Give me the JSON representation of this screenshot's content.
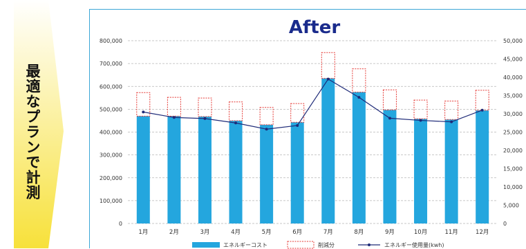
{
  "side_label": "最適なプランで計測",
  "colors": {
    "bar": "#24a6de",
    "reduction_outline": "#e53935",
    "line": "#1e2a78",
    "title": "#1a2b8c",
    "arrow_top": "#ffffff",
    "arrow_bottom": "#f7e13a"
  },
  "chart_data": {
    "type": "bar",
    "title": "After",
    "categories": [
      "1月",
      "2月",
      "3月",
      "4月",
      "5月",
      "6月",
      "7月",
      "8月",
      "9月",
      "10月",
      "11月",
      "12月"
    ],
    "y_left": {
      "min": 0,
      "max": 800000,
      "step": 100000,
      "tick_labels": [
        "0",
        "100,000",
        "200,000",
        "300,000",
        "400,000",
        "500,000",
        "600,000",
        "700,000",
        "800,000"
      ]
    },
    "y_right": {
      "min": 0,
      "max": 50000,
      "step": 5000,
      "tick_labels": [
        "0",
        "5,000",
        "10,000",
        "15,000",
        "20,000",
        "25,000",
        "30,000",
        "35,000",
        "40,000",
        "45,000",
        "50,000"
      ]
    },
    "grid": true,
    "legend_position": "bottom",
    "series": [
      {
        "name": "エネルギーコスト",
        "kind": "bar",
        "axis": "left",
        "values": [
          470000,
          470000,
          468000,
          450000,
          432000,
          443000,
          635000,
          575000,
          497000,
          458000,
          455000,
          495000
        ]
      },
      {
        "name": "削減分",
        "kind": "stacked-outline",
        "axis": "left",
        "values": [
          103000,
          82000,
          81000,
          82000,
          76000,
          82000,
          113000,
          102000,
          88000,
          82000,
          81000,
          88000
        ]
      },
      {
        "name": "エネルギー使用量(kwh)",
        "kind": "line",
        "axis": "right",
        "values": [
          30500,
          29000,
          28700,
          27500,
          25800,
          26800,
          39500,
          34500,
          28800,
          28200,
          27800,
          31000
        ]
      }
    ]
  }
}
